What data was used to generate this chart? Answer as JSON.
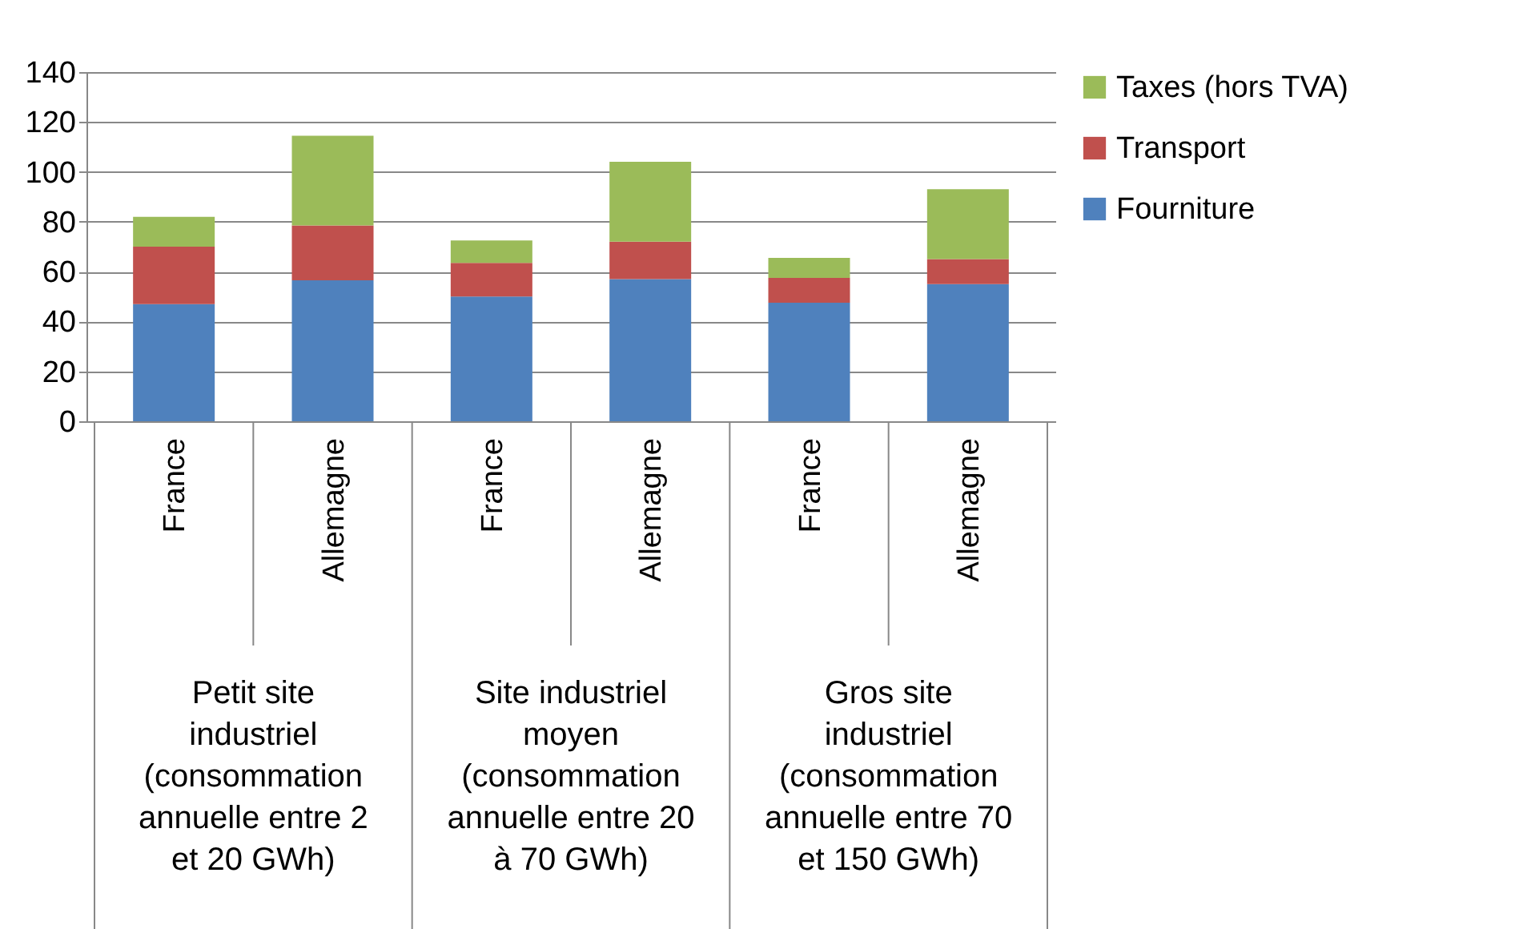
{
  "chart_data": {
    "type": "bar",
    "stacked": true,
    "categories": [
      "France",
      "Allemagne",
      "France",
      "Allemagne",
      "France",
      "Allemagne"
    ],
    "series": [
      {
        "name": "Fourniture",
        "color": "#4f81bd",
        "values": [
          47,
          56.5,
          50,
          57,
          47.5,
          55
        ]
      },
      {
        "name": "Transport",
        "color": "#c0504d",
        "values": [
          23,
          22,
          13.5,
          15,
          10,
          10
        ]
      },
      {
        "name": "Taxes (hors TVA)",
        "color": "#9bbb59",
        "values": [
          12,
          36,
          9,
          32,
          8,
          28
        ]
      }
    ],
    "annotations": [
      "Petit site industriel (consommation annuelle entre 2 et 20 GWh)",
      "Site industriel moyen (consommation annuelle entre 20 à 70 GWh)",
      "Gros site industriel (consommation annuelle entre 70 et 150 GWh)"
    ],
    "ylim": [
      0,
      140
    ],
    "yticks": [
      0,
      20,
      40,
      60,
      80,
      100,
      120,
      140
    ],
    "grid": "y",
    "legend": "right"
  }
}
